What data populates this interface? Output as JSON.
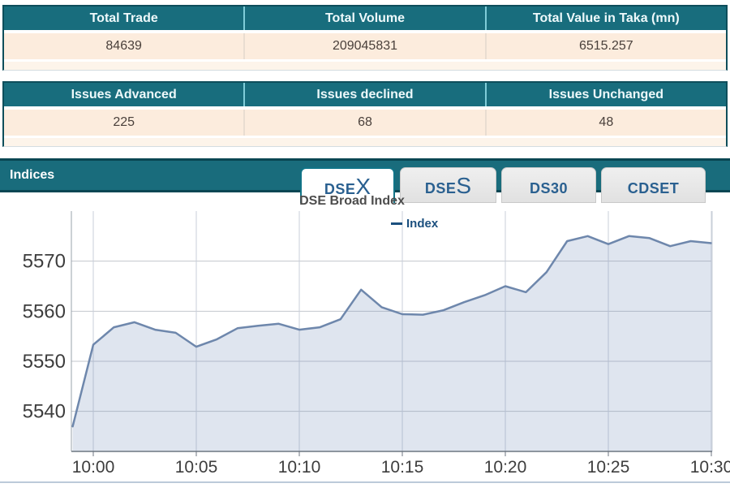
{
  "colors": {
    "teal_header": "#186d7d",
    "teal_border": "#0a4653",
    "header_separator": "#7fccd8",
    "beige_row": "#fcecdd",
    "beige_footer": "#fdf4ea",
    "value_text": "#4a403b",
    "tab_text": "#2a6090",
    "active_tab_border": "#117487",
    "legend_text": "#1b4f7e"
  },
  "summary_table": {
    "headers": [
      "Total Trade",
      "Total Volume",
      "Total Value in Taka (mn)"
    ],
    "values": [
      "84639",
      "209045831",
      "6515.257"
    ]
  },
  "issues_table": {
    "headers": [
      "Issues Advanced",
      "Issues declined",
      "Issues Unchanged"
    ],
    "values": [
      "225",
      "68",
      "48"
    ]
  },
  "indices_panel": {
    "title": "Indices",
    "tabs": [
      {
        "prefix": "DSE",
        "big": "X",
        "active": true
      },
      {
        "prefix": "DSE",
        "big": "S",
        "active": false
      },
      {
        "prefix": "DS30",
        "big": "",
        "active": false
      },
      {
        "prefix": "CDSET",
        "big": "",
        "active": false
      }
    ]
  },
  "chart_data": {
    "type": "area",
    "title": "DSE Broad Index",
    "legend": {
      "label": "Index",
      "position": "top-center"
    },
    "xlabel": "",
    "ylabel": "",
    "grid": true,
    "x_ticks": [
      "10:00",
      "10:05",
      "10:10",
      "10:15",
      "10:20",
      "10:25",
      "10:30"
    ],
    "y_ticks": [
      5540,
      5550,
      5560,
      5570
    ],
    "ylim": [
      5532,
      5580
    ],
    "series": [
      {
        "name": "Index",
        "points": [
          [
            "09:59",
            5537.0
          ],
          [
            "10:00",
            5553.3
          ],
          [
            "10:01",
            5556.8
          ],
          [
            "10:02",
            5557.8
          ],
          [
            "10:03",
            5556.3
          ],
          [
            "10:04",
            5555.7
          ],
          [
            "10:05",
            5552.9
          ],
          [
            "10:06",
            5554.4
          ],
          [
            "10:07",
            5556.6
          ],
          [
            "10:08",
            5557.1
          ],
          [
            "10:09",
            5557.5
          ],
          [
            "10:10",
            5556.3
          ],
          [
            "10:11",
            5556.8
          ],
          [
            "10:12",
            5558.4
          ],
          [
            "10:13",
            5564.3
          ],
          [
            "10:14",
            5560.8
          ],
          [
            "10:15",
            5559.4
          ],
          [
            "10:16",
            5559.3
          ],
          [
            "10:17",
            5560.2
          ],
          [
            "10:18",
            5561.8
          ],
          [
            "10:19",
            5563.2
          ],
          [
            "10:20",
            5565.0
          ],
          [
            "10:21",
            5563.8
          ],
          [
            "10:22",
            5567.8
          ],
          [
            "10:23",
            5574.0
          ],
          [
            "10:24",
            5575.0
          ],
          [
            "10:25",
            5573.4
          ],
          [
            "10:26",
            5575.0
          ],
          [
            "10:27",
            5574.6
          ],
          [
            "10:28",
            5573.0
          ],
          [
            "10:29",
            5574.0
          ],
          [
            "10:30",
            5573.6
          ]
        ]
      }
    ],
    "colors": {
      "line": "#6e87ac",
      "fill": "rgba(110,135,180,0.22)",
      "grid_h": "#c3c7cd",
      "grid_v": "#c9cfd9",
      "axis": "#6d7680",
      "tick_label": "#3d3d3d"
    }
  }
}
